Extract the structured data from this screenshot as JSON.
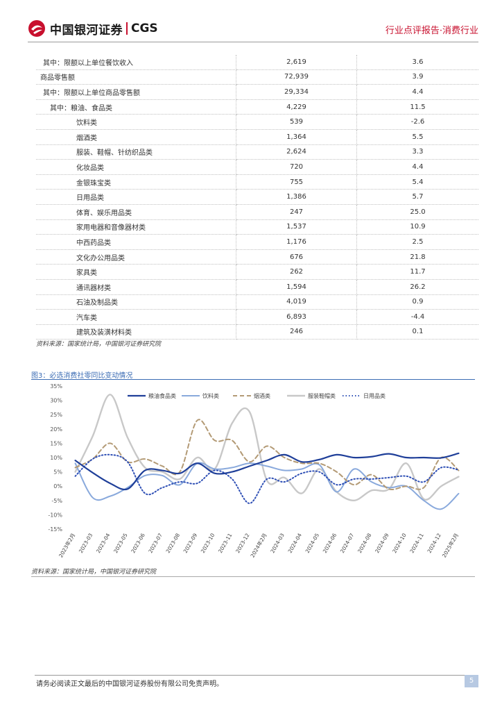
{
  "header": {
    "logo_cn": "中国银河证券",
    "logo_en": "CGS",
    "category": "行业点评报告·消费行业"
  },
  "table": {
    "rows": [
      {
        "label": "其中：限额以上单位餐饮收入",
        "value": "2,619",
        "yoy": "3.6",
        "indent": 1
      },
      {
        "label": "商品零售额",
        "value": "72,939",
        "yoy": "3.9",
        "indent": 0
      },
      {
        "label": "其中：限额以上单位商品零售额",
        "value": "29,334",
        "yoy": "4.4",
        "indent": 1
      },
      {
        "label": "其中：粮油、食品类",
        "value": "4,229",
        "yoy": "11.5",
        "indent": 2
      },
      {
        "label": "饮料类",
        "value": "539",
        "yoy": "-2.6",
        "indent": 3
      },
      {
        "label": "烟酒类",
        "value": "1,364",
        "yoy": "5.5",
        "indent": 3
      },
      {
        "label": "服装、鞋帽、针纺织品类",
        "value": "2,624",
        "yoy": "3.3",
        "indent": 3
      },
      {
        "label": "化妆品类",
        "value": "720",
        "yoy": "4.4",
        "indent": 3
      },
      {
        "label": "金银珠宝类",
        "value": "755",
        "yoy": "5.4",
        "indent": 3
      },
      {
        "label": "日用品类",
        "value": "1,386",
        "yoy": "5.7",
        "indent": 3
      },
      {
        "label": "体育、娱乐用品类",
        "value": "247",
        "yoy": "25.0",
        "indent": 3
      },
      {
        "label": "家用电器和音像器材类",
        "value": "1,537",
        "yoy": "10.9",
        "indent": 3
      },
      {
        "label": "中西药品类",
        "value": "1,176",
        "yoy": "2.5",
        "indent": 3
      },
      {
        "label": "文化办公用品类",
        "value": "676",
        "yoy": "21.8",
        "indent": 3
      },
      {
        "label": "家具类",
        "value": "262",
        "yoy": "11.7",
        "indent": 3
      },
      {
        "label": "通讯器材类",
        "value": "1,594",
        "yoy": "26.2",
        "indent": 3
      },
      {
        "label": "石油及制品类",
        "value": "4,019",
        "yoy": "0.9",
        "indent": 3
      },
      {
        "label": "汽车类",
        "value": "6,893",
        "yoy": "-4.4",
        "indent": 3
      },
      {
        "label": "建筑及装潢材料类",
        "value": "246",
        "yoy": "0.1",
        "indent": 3
      }
    ]
  },
  "table_source": "资料来源：国家统计局，中国银河证券研究院",
  "figure": {
    "title": "图3：必选消费社零同比变动情况",
    "source": "资料来源：国家统计局，中国银河证券研究院"
  },
  "chart_data": {
    "type": "line",
    "title": "必选消费社零同比变动情况",
    "ylim": [
      -15,
      35
    ],
    "yticks": [
      "35%",
      "30%",
      "25%",
      "20%",
      "15%",
      "10%",
      "5%",
      "0%",
      "-5%",
      "-10%",
      "-15%"
    ],
    "ytick_values": [
      35,
      30,
      25,
      20,
      15,
      10,
      5,
      0,
      -5,
      -10,
      -15
    ],
    "categories": [
      "2023年2月",
      "2023-03",
      "2023-04",
      "2023-05",
      "2023-06",
      "2023-07",
      "2023-08",
      "2023-09",
      "2023-10",
      "2023-11",
      "2023-12",
      "2024年2月",
      "2024-03",
      "2024-04",
      "2024-05",
      "2024-06",
      "2024-07",
      "2024-08",
      "2024-09",
      "2024-10",
      "2024-11",
      "2024-12",
      "2025年2月"
    ],
    "series": [
      {
        "name": "粮油食品类",
        "color": "#1f3f99",
        "style": "solid-bold",
        "values": [
          9.0,
          4.7,
          1.0,
          -1.0,
          5.5,
          5.5,
          4.5,
          8.0,
          4.5,
          5.0,
          7.0,
          9.0,
          11.0,
          8.5,
          9.3,
          11.0,
          10.0,
          10.3,
          11.3,
          10.0,
          10.0,
          9.9,
          11.5
        ]
      },
      {
        "name": "饮料类",
        "color": "#89a9dc",
        "style": "solid",
        "values": [
          8.0,
          -4.0,
          -3.5,
          -0.5,
          3.7,
          3.7,
          0.5,
          8.0,
          6.0,
          6.5,
          8.0,
          7.0,
          5.5,
          6.0,
          7.5,
          -2.0,
          6.0,
          1.5,
          -0.5,
          0.0,
          -5.0,
          -8.0,
          -2.6
        ]
      },
      {
        "name": "烟酒类",
        "color": "#b39a75",
        "style": "dashed",
        "values": [
          6.5,
          9.5,
          15.0,
          8.5,
          9.5,
          7.0,
          5.0,
          23.0,
          16.0,
          16.0,
          8.5,
          14.0,
          10.0,
          8.0,
          8.0,
          5.0,
          0.5,
          4.0,
          -1.0,
          0.0,
          -0.5,
          10.0,
          5.5
        ]
      },
      {
        "name": "服装鞋帽类",
        "color": "#c8c8c8",
        "style": "solid-thick",
        "values": [
          5.0,
          17.5,
          32.0,
          17.0,
          6.5,
          5.0,
          2.5,
          10.0,
          6.0,
          22.0,
          26.0,
          2.0,
          3.0,
          -2.5,
          6.0,
          -2.0,
          -5.0,
          -1.5,
          -1.0,
          8.0,
          -4.5,
          0.0,
          3.3
        ]
      },
      {
        "name": "日用品类",
        "color": "#2e4fb5",
        "style": "dotted",
        "values": [
          3.5,
          9.5,
          11.0,
          8.5,
          -2.5,
          -0.5,
          1.5,
          1.0,
          5.5,
          2.5,
          -6.0,
          2.5,
          1.5,
          4.5,
          5.0,
          0.5,
          2.5,
          2.5,
          3.0,
          3.5,
          1.5,
          6.5,
          5.7
        ]
      }
    ]
  },
  "footer": {
    "disclaimer": "请务必阅读正文最后的中国银河证券股份有限公司免责声明。",
    "page": "5"
  }
}
